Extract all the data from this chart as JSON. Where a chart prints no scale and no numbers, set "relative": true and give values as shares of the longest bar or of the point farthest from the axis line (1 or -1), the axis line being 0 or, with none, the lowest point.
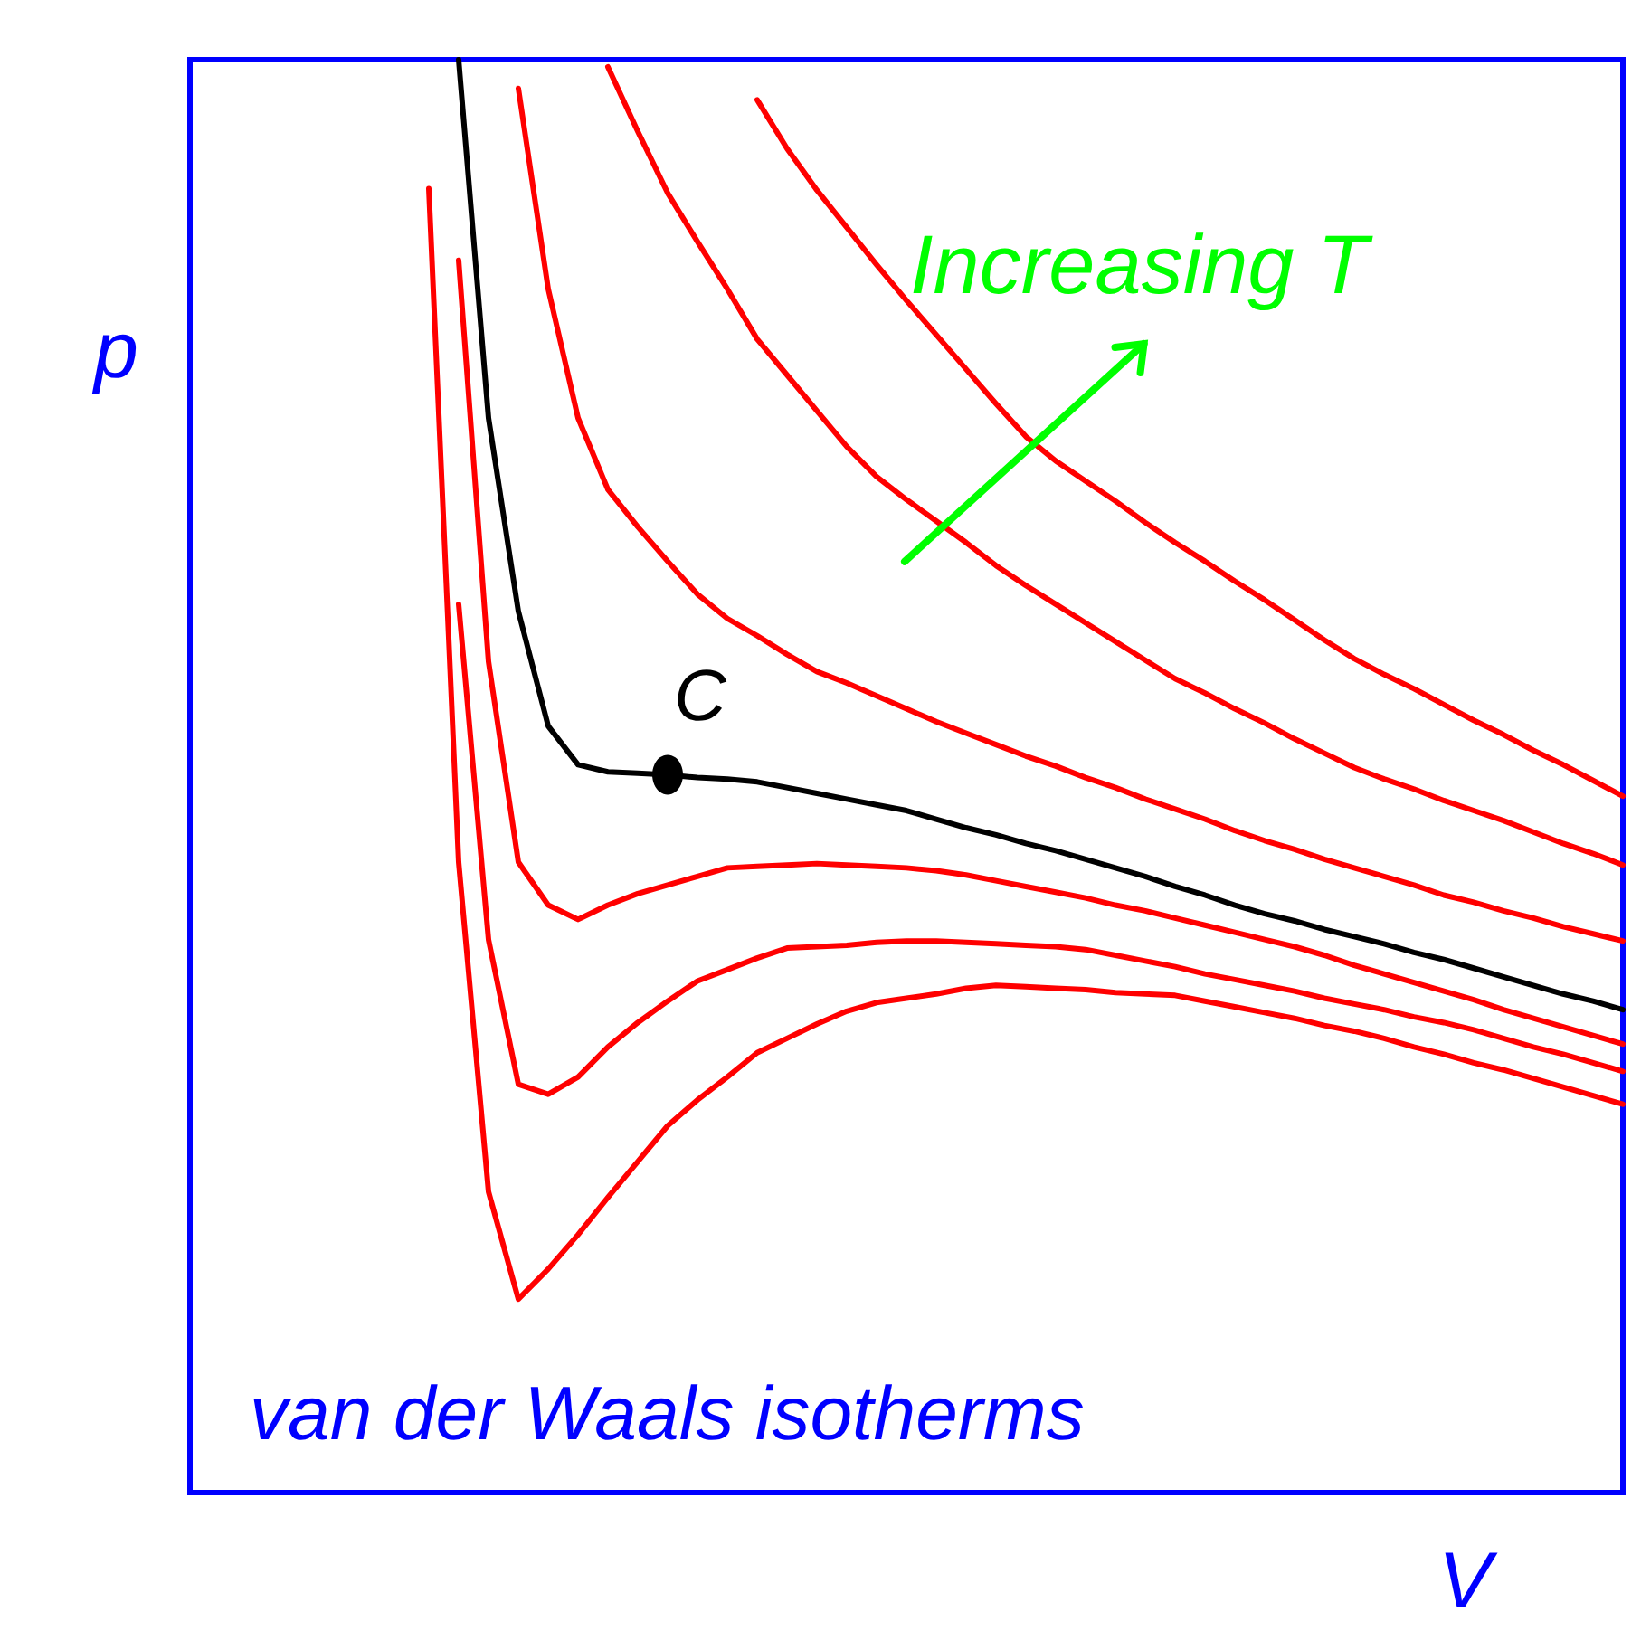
{
  "chart_data": {
    "type": "line",
    "title": "van der Waals isotherms",
    "xlabel": "V",
    "ylabel": "p",
    "relative": true,
    "marker": "none",
    "line_style": "solid",
    "grid": false,
    "annotations": [
      "Increasing T",
      {
        "text": "C",
        "y": 0.501
      }
    ],
    "categories": [
      null,
      null,
      null,
      null,
      null,
      null,
      null,
      null,
      null,
      null,
      null,
      null,
      null,
      null,
      null,
      null,
      null,
      null,
      null,
      null,
      null,
      null,
      null,
      null,
      null,
      null,
      null,
      null,
      null,
      null,
      null,
      null,
      null,
      null,
      null,
      null,
      null,
      null,
      null,
      null,
      null,
      null,
      null,
      null,
      null,
      null,
      null,
      null,
      null
    ],
    "series": [
      {
        "color": "#ff0000",
        "values": [
          null,
          null,
          null,
          null,
          null,
          null,
          null,
          null,
          0.91,
          0.44,
          0.21,
          0.135,
          0.156,
          0.18,
          0.206,
          0.231,
          0.256,
          0.274,
          0.29,
          0.307,
          0.317,
          0.327,
          0.336,
          0.342,
          0.345,
          0.348,
          0.352,
          0.354,
          0.353,
          0.352,
          0.351,
          0.349,
          0.348,
          0.347,
          0.343,
          0.339,
          0.335,
          0.331,
          0.326,
          0.322,
          0.317,
          0.311,
          0.306,
          0.3,
          0.295,
          0.289,
          0.283,
          0.277,
          0.271
        ]
      },
      {
        "color": "#ff0000",
        "values": [
          null,
          null,
          null,
          null,
          null,
          null,
          null,
          null,
          null,
          0.62,
          0.386,
          0.285,
          0.278,
          0.29,
          0.311,
          0.328,
          0.343,
          0.357,
          0.365,
          0.373,
          0.38,
          0.381,
          0.382,
          0.384,
          0.385,
          0.385,
          0.384,
          0.383,
          0.382,
          0.381,
          0.379,
          0.375,
          0.371,
          0.367,
          0.362,
          0.358,
          0.354,
          0.35,
          0.345,
          0.341,
          0.337,
          0.332,
          0.328,
          0.323,
          0.317,
          0.311,
          0.306,
          0.3,
          0.294
        ]
      },
      {
        "color": "#ff0000",
        "values": [
          null,
          null,
          null,
          null,
          null,
          null,
          null,
          null,
          null,
          0.86,
          0.58,
          0.44,
          0.41,
          0.4,
          0.41,
          0.418,
          0.424,
          0.43,
          0.436,
          0.437,
          0.438,
          0.439,
          0.438,
          0.437,
          0.436,
          0.434,
          0.431,
          0.427,
          0.423,
          0.419,
          0.415,
          0.41,
          0.406,
          0.401,
          0.396,
          0.391,
          0.386,
          0.381,
          0.375,
          0.368,
          0.362,
          0.356,
          0.35,
          0.344,
          0.337,
          0.331,
          0.325,
          0.319,
          0.313
        ]
      },
      {
        "color": "#000000",
        "values": [
          null,
          null,
          null,
          null,
          null,
          null,
          null,
          null,
          null,
          1.0,
          0.75,
          0.615,
          0.535,
          0.508,
          0.503,
          0.502,
          0.501,
          0.499,
          0.498,
          0.496,
          0.492,
          0.488,
          0.484,
          0.48,
          0.476,
          0.47,
          0.464,
          0.459,
          0.453,
          0.448,
          0.442,
          0.436,
          0.43,
          0.423,
          0.417,
          0.41,
          0.404,
          0.399,
          0.393,
          0.388,
          0.383,
          0.377,
          0.372,
          0.366,
          0.36,
          0.354,
          0.348,
          0.343,
          0.337
        ]
      },
      {
        "color": "#ff0000",
        "values": [
          null,
          null,
          null,
          null,
          null,
          null,
          null,
          null,
          null,
          null,
          null,
          0.98,
          0.84,
          0.75,
          0.7,
          0.674,
          0.65,
          0.627,
          0.61,
          0.598,
          0.585,
          0.573,
          0.565,
          0.556,
          0.547,
          0.538,
          0.53,
          0.522,
          0.514,
          0.507,
          0.499,
          0.492,
          0.484,
          0.477,
          0.47,
          0.462,
          0.455,
          0.449,
          0.442,
          0.436,
          0.43,
          0.424,
          0.417,
          0.412,
          0.406,
          0.401,
          0.395,
          0.39,
          0.385
        ]
      },
      {
        "color": "#ff0000",
        "values": [
          null,
          null,
          null,
          null,
          null,
          null,
          null,
          null,
          null,
          null,
          null,
          null,
          null,
          null,
          0.995,
          0.95,
          0.907,
          0.873,
          0.84,
          0.805,
          0.78,
          0.755,
          0.73,
          0.709,
          0.693,
          0.678,
          0.663,
          0.647,
          0.633,
          0.62,
          0.607,
          0.594,
          0.581,
          0.568,
          0.558,
          0.547,
          0.537,
          0.526,
          0.516,
          0.506,
          0.498,
          0.491,
          0.483,
          0.476,
          0.469,
          0.461,
          0.453,
          0.446,
          0.438
        ]
      },
      {
        "color": "#ff0000",
        "values": [
          null,
          null,
          null,
          null,
          null,
          null,
          null,
          null,
          null,
          null,
          null,
          null,
          null,
          null,
          null,
          null,
          null,
          null,
          null,
          0.972,
          0.938,
          0.909,
          0.883,
          0.857,
          0.832,
          0.808,
          0.784,
          0.76,
          0.737,
          0.72,
          0.706,
          0.692,
          0.677,
          0.663,
          0.65,
          0.636,
          0.623,
          0.609,
          0.595,
          0.582,
          0.571,
          0.561,
          0.55,
          0.539,
          0.529,
          0.518,
          0.508,
          0.497,
          0.486
        ]
      }
    ]
  }
}
